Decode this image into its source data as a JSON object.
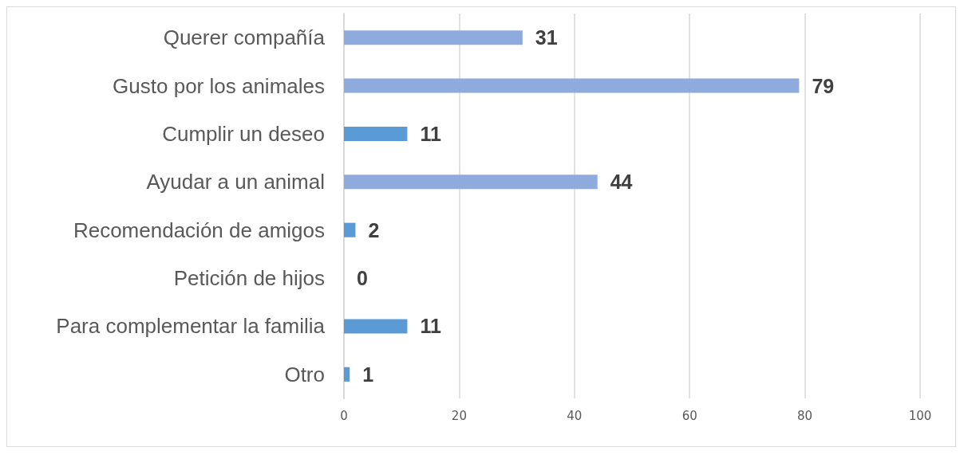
{
  "chart_data": {
    "type": "bar",
    "orientation": "horizontal",
    "categories": [
      "Querer compañía",
      "Gusto por los animales",
      "Cumplir un deseo",
      "Ayudar a un animal",
      "Recomendación de amigos",
      "Petición de hijos",
      "Para complementar la familia",
      "Otro"
    ],
    "values": [
      31,
      79,
      11,
      44,
      2,
      0,
      11,
      1
    ],
    "colors": [
      "#8faadc",
      "#8faadc",
      "#5b9bd5",
      "#8faadc",
      "#5b9bd5",
      "#5b9bd5",
      "#5b9bd5",
      "#5b9bd5"
    ],
    "xlim": [
      0,
      100
    ],
    "xticks": [
      0,
      20,
      40,
      60,
      80,
      100
    ],
    "grid": "x",
    "data_labels": true
  }
}
